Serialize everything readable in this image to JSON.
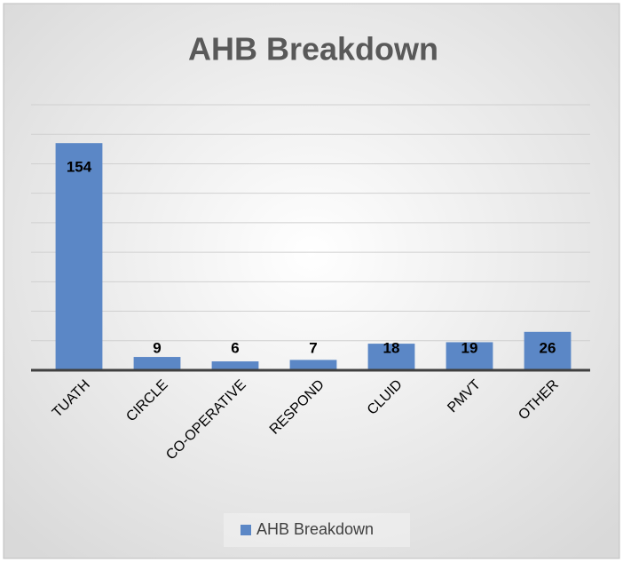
{
  "chart_data": {
    "type": "bar",
    "title": "AHB Breakdown",
    "categories": [
      "TUATH",
      "CIRCLE",
      "CO-OPERATIVE",
      "RESPOND",
      "CLUID",
      "PMVT",
      "OTHER"
    ],
    "series": [
      {
        "name": "AHB Breakdown",
        "color": "#5b87c6",
        "values": [
          154,
          9,
          6,
          7,
          18,
          19,
          26
        ]
      }
    ],
    "ylim": [
      0,
      180
    ],
    "yticks": [
      0,
      20,
      40,
      60,
      80,
      100,
      120,
      140,
      160,
      180
    ],
    "grid": true,
    "legend": "bottom"
  }
}
